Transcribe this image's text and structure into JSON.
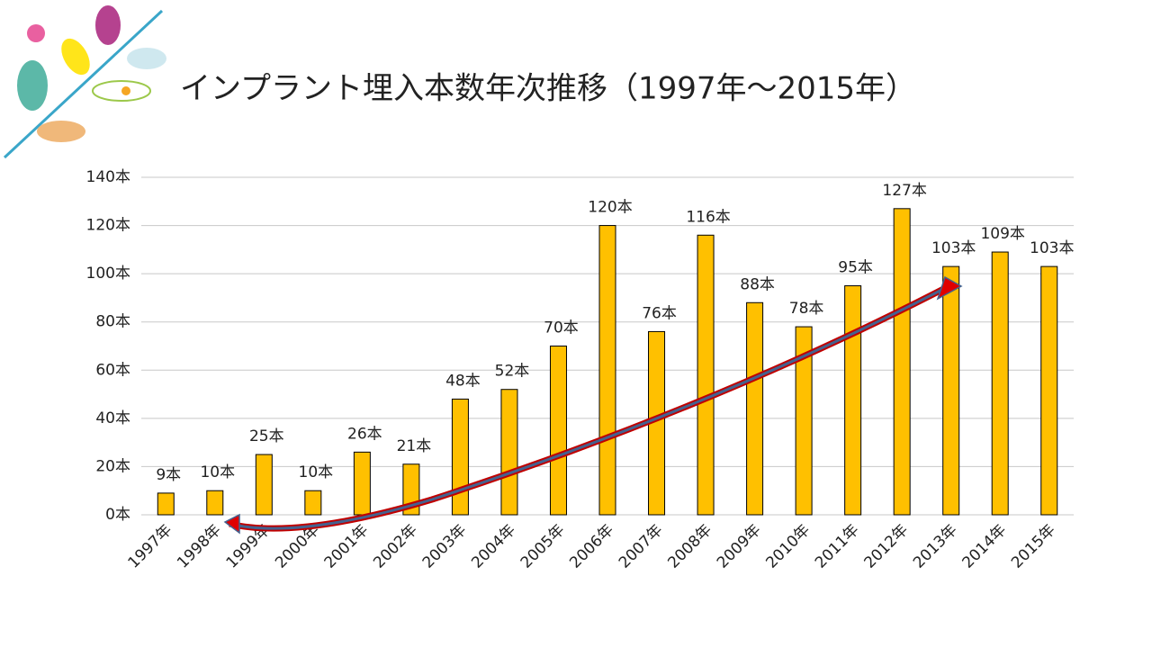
{
  "chart_data": {
    "type": "bar",
    "title": "インプラント埋入本数年次推移（1997年～2015年）",
    "categories": [
      "1997年",
      "1998年",
      "1999年",
      "2000年",
      "2001年",
      "2002年",
      "2003年",
      "2004年",
      "2005年",
      "2006年",
      "2007年",
      "2008年",
      "2009年",
      "2010年",
      "2011年",
      "2012年",
      "2013年",
      "2014年",
      "2015年"
    ],
    "values": [
      9,
      10,
      25,
      10,
      26,
      21,
      48,
      52,
      70,
      120,
      76,
      116,
      88,
      78,
      95,
      127,
      103,
      109,
      103
    ],
    "value_labels": [
      "9本",
      "10本",
      "25本",
      "10本",
      "26本",
      "21本",
      "48本",
      "52本",
      "70本",
      "120本",
      "76本",
      "116本",
      "88本",
      "78本",
      "95本",
      "127本",
      "103本",
      "109本",
      "103本"
    ],
    "color": "#ffc000",
    "ylim": [
      0,
      140
    ],
    "yticks": [
      {
        "value": 0,
        "label": "0本"
      },
      {
        "value": 20,
        "label": "20本"
      },
      {
        "value": 40,
        "label": "40本"
      },
      {
        "value": 60,
        "label": "60本"
      },
      {
        "value": 80,
        "label": "80本"
      },
      {
        "value": 100,
        "label": "100本"
      },
      {
        "value": 120,
        "label": "120本"
      },
      {
        "value": 140,
        "label": "140本"
      }
    ],
    "grid": true
  }
}
